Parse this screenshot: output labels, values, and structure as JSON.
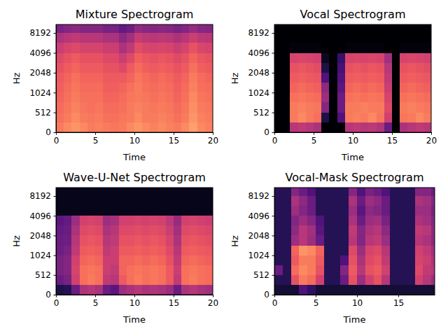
{
  "chart_data": [
    {
      "type": "heatmap",
      "title": "Mixture Spectrogram",
      "x_label": "Time",
      "y_label": "Hz",
      "xlim": [
        0,
        20
      ],
      "ylim": [
        0,
        11025
      ],
      "xticks": [
        0,
        5,
        10,
        15,
        20
      ],
      "yticks": [
        0,
        512,
        1024,
        2048,
        4096,
        8192
      ],
      "log": "y",
      "color": "magma",
      "color_range": [
        -80,
        0
      ],
      "x_edges": [
        0,
        1,
        2,
        3,
        4,
        5,
        6,
        7,
        8,
        9,
        10,
        11,
        12,
        13,
        14,
        15,
        16,
        17,
        18,
        19,
        20
      ],
      "y_edges": [
        0,
        256,
        512,
        724,
        1024,
        1448,
        2048,
        2896,
        4096,
        5793,
        8192,
        11025
      ],
      "cells": [
        [
          -22,
          -20,
          -18,
          -20,
          -22,
          -21,
          -22,
          -23,
          -22,
          -20,
          -18,
          -20,
          -21,
          -20,
          -21,
          -22,
          -20,
          -16,
          -20,
          -21
        ],
        [
          -24,
          -22,
          -20,
          -22,
          -23,
          -22,
          -24,
          -24,
          -23,
          -22,
          -20,
          -22,
          -22,
          -21,
          -22,
          -24,
          -22,
          -18,
          -21,
          -22
        ],
        [
          -25,
          -23,
          -21,
          -23,
          -24,
          -23,
          -25,
          -25,
          -24,
          -22,
          -21,
          -22,
          -23,
          -22,
          -23,
          -25,
          -23,
          -19,
          -22,
          -23
        ],
        [
          -26,
          -24,
          -22,
          -24,
          -24,
          -24,
          -26,
          -26,
          -25,
          -23,
          -22,
          -23,
          -24,
          -23,
          -24,
          -26,
          -24,
          -20,
          -23,
          -24
        ],
        [
          -27,
          -25,
          -23,
          -25,
          -25,
          -25,
          -27,
          -27,
          -26,
          -24,
          -22,
          -24,
          -25,
          -24,
          -25,
          -27,
          -25,
          -21,
          -24,
          -25
        ],
        [
          -28,
          -26,
          -24,
          -26,
          -26,
          -26,
          -28,
          -28,
          -28,
          -26,
          -23,
          -25,
          -26,
          -25,
          -26,
          -28,
          -26,
          -22,
          -25,
          -26
        ],
        [
          -30,
          -28,
          -26,
          -28,
          -28,
          -28,
          -30,
          -30,
          -32,
          -28,
          -25,
          -27,
          -28,
          -27,
          -28,
          -30,
          -28,
          -24,
          -27,
          -28
        ],
        [
          -32,
          -30,
          -28,
          -30,
          -30,
          -30,
          -32,
          -32,
          -36,
          -32,
          -27,
          -29,
          -30,
          -29,
          -30,
          -32,
          -30,
          -26,
          -29,
          -30
        ],
        [
          -36,
          -34,
          -32,
          -34,
          -34,
          -34,
          -36,
          -36,
          -42,
          -38,
          -31,
          -33,
          -34,
          -33,
          -34,
          -36,
          -34,
          -30,
          -33,
          -34
        ],
        [
          -42,
          -40,
          -38,
          -40,
          -40,
          -40,
          -42,
          -42,
          -48,
          -44,
          -37,
          -39,
          -40,
          -39,
          -40,
          -42,
          -40,
          -36,
          -39,
          -40
        ],
        [
          -52,
          -50,
          -48,
          -50,
          -50,
          -50,
          -52,
          -52,
          -56,
          -54,
          -47,
          -49,
          -50,
          -49,
          -50,
          -52,
          -50,
          -46,
          -49,
          -50
        ]
      ]
    },
    {
      "type": "heatmap",
      "title": "Vocal Spectrogram",
      "x_label": "Time",
      "y_label": "Hz",
      "xlim": [
        0,
        20
      ],
      "ylim": [
        0,
        11025
      ],
      "xticks": [
        0,
        5,
        10,
        15,
        20
      ],
      "yticks": [
        0,
        512,
        1024,
        2048,
        4096,
        8192
      ],
      "log": "y",
      "color": "magma",
      "color_range": [
        -80,
        0
      ],
      "x_edges": [
        0,
        1,
        2,
        3,
        4,
        5,
        6,
        7,
        8,
        9,
        10,
        11,
        12,
        13,
        14,
        15,
        16,
        17,
        18,
        19,
        20
      ],
      "y_edges": [
        0,
        256,
        512,
        724,
        1024,
        1448,
        2048,
        2896,
        4096,
        5793,
        8192,
        11025
      ],
      "cells": [
        [
          -80,
          -80,
          -40,
          -38,
          -40,
          -42,
          -80,
          -80,
          -80,
          -40,
          -38,
          -40,
          -39,
          -41,
          -55,
          -80,
          -42,
          -40,
          -38,
          -40
        ],
        [
          -80,
          -80,
          -22,
          -20,
          -22,
          -24,
          -70,
          -80,
          -60,
          -22,
          -21,
          -22,
          -20,
          -23,
          -35,
          -80,
          -23,
          -22,
          -20,
          -22
        ],
        [
          -80,
          -80,
          -22,
          -21,
          -22,
          -23,
          -50,
          -80,
          -55,
          -22,
          -22,
          -21,
          -22,
          -22,
          -32,
          -80,
          -22,
          -21,
          -22,
          -23
        ],
        [
          -80,
          -80,
          -24,
          -23,
          -24,
          -25,
          -45,
          -80,
          -55,
          -24,
          -23,
          -24,
          -23,
          -24,
          -34,
          -80,
          -24,
          -23,
          -24,
          -25
        ],
        [
          -80,
          -80,
          -26,
          -25,
          -26,
          -27,
          -48,
          -80,
          -58,
          -26,
          -25,
          -26,
          -25,
          -26,
          -36,
          -80,
          -26,
          -25,
          -26,
          -27
        ],
        [
          -80,
          -80,
          -28,
          -27,
          -28,
          -29,
          -60,
          -80,
          -60,
          -28,
          -27,
          -28,
          -27,
          -28,
          -38,
          -80,
          -28,
          -27,
          -28,
          -29
        ],
        [
          -80,
          -80,
          -30,
          -29,
          -30,
          -31,
          -70,
          -80,
          -62,
          -30,
          -29,
          -30,
          -29,
          -30,
          -40,
          -80,
          -30,
          -29,
          -30,
          -31
        ],
        [
          -80,
          -80,
          -34,
          -33,
          -34,
          -35,
          -75,
          -80,
          -65,
          -34,
          -33,
          -34,
          -33,
          -34,
          -44,
          -80,
          -34,
          -33,
          -34,
          -35
        ],
        [
          -80,
          -80,
          -78,
          -78,
          -78,
          -78,
          -80,
          -80,
          -80,
          -78,
          -78,
          -78,
          -78,
          -78,
          -80,
          -80,
          -78,
          -78,
          -78,
          -78
        ],
        [
          -80,
          -80,
          -80,
          -80,
          -80,
          -80,
          -80,
          -80,
          -80,
          -80,
          -80,
          -80,
          -80,
          -80,
          -80,
          -80,
          -80,
          -80,
          -80,
          -80
        ],
        [
          -80,
          -80,
          -80,
          -80,
          -80,
          -80,
          -80,
          -80,
          -80,
          -80,
          -80,
          -80,
          -80,
          -80,
          -80,
          -80,
          -80,
          -80,
          -80,
          -80
        ]
      ]
    },
    {
      "type": "heatmap",
      "title": "Wave-U-Net Spectrogram",
      "x_label": "Time",
      "y_label": "Hz",
      "xlim": [
        0,
        20
      ],
      "ylim": [
        0,
        11025
      ],
      "xticks": [
        0,
        5,
        10,
        15,
        20
      ],
      "yticks": [
        0,
        512,
        1024,
        2048,
        4096,
        8192
      ],
      "log": "y",
      "color": "magma",
      "color_range": [
        -80,
        0
      ],
      "x_edges": [
        0,
        1,
        2,
        3,
        4,
        5,
        6,
        7,
        8,
        9,
        10,
        11,
        12,
        13,
        14,
        15,
        16,
        17,
        18,
        19,
        20
      ],
      "y_edges": [
        0,
        256,
        512,
        724,
        1024,
        1448,
        2048,
        2896,
        4096,
        5793,
        8192,
        11025
      ],
      "cells": [
        [
          -70,
          -68,
          -55,
          -42,
          -40,
          -42,
          -55,
          -58,
          -45,
          -42,
          -40,
          -42,
          -41,
          -42,
          -45,
          -55,
          -42,
          -40,
          -42,
          -44
        ],
        [
          -55,
          -52,
          -35,
          -24,
          -22,
          -24,
          -38,
          -40,
          -28,
          -24,
          -22,
          -24,
          -23,
          -24,
          -28,
          -38,
          -24,
          -22,
          -24,
          -25
        ],
        [
          -52,
          -50,
          -34,
          -24,
          -23,
          -24,
          -36,
          -38,
          -26,
          -24,
          -23,
          -24,
          -23,
          -24,
          -28,
          -36,
          -24,
          -23,
          -24,
          -25
        ],
        [
          -52,
          -50,
          -35,
          -26,
          -25,
          -26,
          -36,
          -36,
          -26,
          -26,
          -25,
          -26,
          -25,
          -26,
          -30,
          -38,
          -26,
          -25,
          -26,
          -27
        ],
        [
          -54,
          -52,
          -38,
          -28,
          -27,
          -28,
          -38,
          -36,
          -28,
          -28,
          -27,
          -28,
          -27,
          -28,
          -32,
          -40,
          -28,
          -27,
          -28,
          -29
        ],
        [
          -55,
          -54,
          -40,
          -30,
          -29,
          -30,
          -40,
          -38,
          -30,
          -30,
          -29,
          -30,
          -29,
          -30,
          -34,
          -42,
          -30,
          -29,
          -30,
          -31
        ],
        [
          -56,
          -55,
          -42,
          -32,
          -31,
          -32,
          -42,
          -40,
          -32,
          -32,
          -31,
          -32,
          -31,
          -32,
          -36,
          -44,
          -32,
          -31,
          -32,
          -33
        ],
        [
          -58,
          -56,
          -45,
          -35,
          -34,
          -35,
          -45,
          -43,
          -35,
          -35,
          -34,
          -35,
          -34,
          -35,
          -39,
          -46,
          -35,
          -34,
          -35,
          -36
        ],
        [
          -76,
          -76,
          -76,
          -76,
          -76,
          -76,
          -76,
          -76,
          -76,
          -76,
          -76,
          -76,
          -76,
          -76,
          -76,
          -76,
          -76,
          -76,
          -76,
          -76
        ],
        [
          -76,
          -76,
          -76,
          -76,
          -76,
          -76,
          -76,
          -76,
          -76,
          -76,
          -76,
          -76,
          -76,
          -76,
          -76,
          -76,
          -76,
          -76,
          -76,
          -76
        ],
        [
          -76,
          -76,
          -76,
          -76,
          -76,
          -76,
          -76,
          -76,
          -76,
          -76,
          -76,
          -76,
          -76,
          -76,
          -76,
          -76,
          -76,
          -76,
          -76,
          -76
        ]
      ]
    },
    {
      "type": "heatmap",
      "title": "Vocal-Mask Spectrogram",
      "x_label": "Time",
      "y_label": "Hz",
      "xlim": [
        0,
        19.4
      ],
      "ylim": [
        0,
        11025
      ],
      "xticks": [
        0,
        5,
        10,
        15
      ],
      "yticks": [
        0,
        512,
        1024,
        2048,
        4096,
        8192
      ],
      "log": "y",
      "color": "magma",
      "color_range": [
        -80,
        0
      ],
      "x_edges": [
        0,
        1,
        2,
        3,
        4,
        5,
        6,
        7,
        8,
        9,
        10,
        11,
        12,
        13,
        14,
        15,
        16,
        17,
        18,
        19,
        19.4
      ],
      "y_edges": [
        0,
        256,
        512,
        724,
        1024,
        1448,
        2048,
        2896,
        4096,
        5793,
        8192,
        11025
      ],
      "cells": [
        [
          -72,
          -72,
          -72,
          -60,
          -66,
          -72,
          -72,
          -72,
          -72,
          -72,
          -72,
          -72,
          -72,
          -72,
          -72,
          -72,
          -72,
          -72,
          -72,
          -72
        ],
        [
          -68,
          -68,
          -30,
          -22,
          -25,
          -35,
          -68,
          -68,
          -55,
          -30,
          -45,
          -35,
          -30,
          -40,
          -68,
          -68,
          -68,
          -35,
          -40,
          -45
        ],
        [
          -55,
          -68,
          -25,
          -20,
          -22,
          -30,
          -68,
          -68,
          -50,
          -28,
          -40,
          -30,
          -28,
          -35,
          -68,
          -68,
          -68,
          -32,
          -38,
          -40
        ],
        [
          -68,
          -68,
          -28,
          -22,
          -22,
          -28,
          -68,
          -68,
          -60,
          -30,
          -42,
          -32,
          -30,
          -38,
          -68,
          -68,
          -68,
          -34,
          -36,
          -42
        ],
        [
          -68,
          -68,
          -26,
          -18,
          -20,
          -26,
          -68,
          -68,
          -68,
          -32,
          -45,
          -34,
          -32,
          -40,
          -68,
          -68,
          -68,
          -35,
          -38,
          -44
        ],
        [
          -68,
          -68,
          -45,
          -40,
          -45,
          -55,
          -68,
          -68,
          -68,
          -40,
          -50,
          -40,
          -38,
          -45,
          -68,
          -68,
          -68,
          -40,
          -42,
          -48
        ],
        [
          -68,
          -68,
          -48,
          -40,
          -44,
          -58,
          -68,
          -68,
          -68,
          -38,
          -50,
          -42,
          -40,
          -48,
          -68,
          -68,
          -68,
          -38,
          -40,
          -48
        ],
        [
          -68,
          -68,
          -50,
          -45,
          -50,
          -60,
          -68,
          -68,
          -68,
          -42,
          -55,
          -45,
          -44,
          -52,
          -68,
          -68,
          -68,
          -42,
          -44,
          -50
        ],
        [
          -68,
          -68,
          -45,
          -50,
          -55,
          -68,
          -68,
          -68,
          -68,
          -45,
          -58,
          -48,
          -50,
          -55,
          -68,
          -68,
          -68,
          -45,
          -45,
          -52
        ],
        [
          -68,
          -68,
          -42,
          -48,
          -55,
          -68,
          -68,
          -68,
          -68,
          -42,
          -55,
          -45,
          -48,
          -55,
          -68,
          -68,
          -68,
          -42,
          -44,
          -50
        ],
        [
          -68,
          -68,
          -50,
          -55,
          -60,
          -68,
          -68,
          -68,
          -68,
          -50,
          -60,
          -52,
          -55,
          -60,
          -68,
          -68,
          -68,
          -50,
          -50,
          -55
        ]
      ]
    }
  ]
}
